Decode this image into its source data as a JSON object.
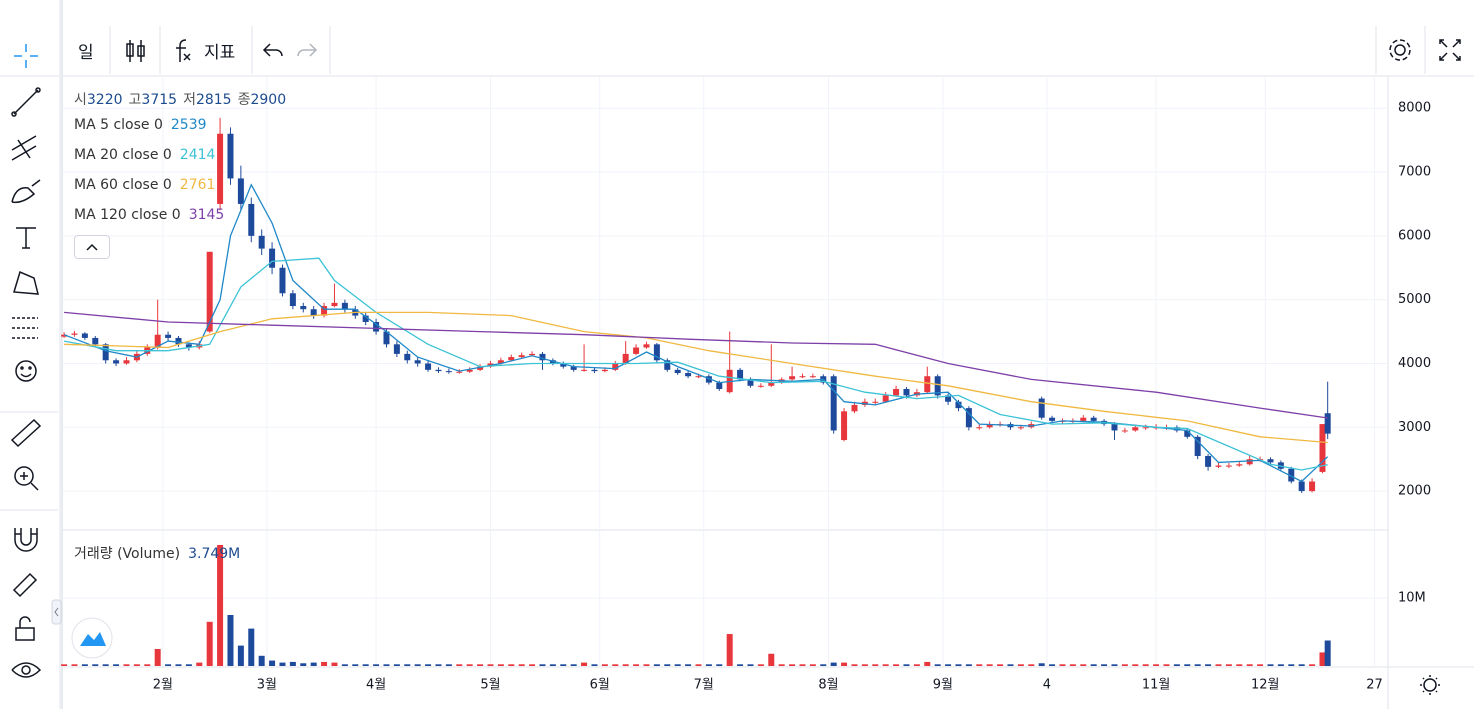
{
  "toolbar": {
    "interval": "일",
    "indicators": "지표"
  },
  "chart_data": [
    {
      "type": "candlestick",
      "ohlc_labels": [
        "시",
        "고",
        "저",
        "종"
      ],
      "up_color": "#e8373c",
      "down_color": "#1e4a9c",
      "xlim": [
        -0.4,
        254.6
      ],
      "xticks": [
        {
          "value": 19,
          "label": "2월"
        },
        {
          "value": 39,
          "label": "3월"
        },
        {
          "value": 60,
          "label": "4월"
        },
        {
          "value": 82,
          "label": "5월"
        },
        {
          "value": 103,
          "label": "6월"
        },
        {
          "value": 123,
          "label": "7월"
        },
        {
          "value": 147,
          "label": "8월"
        },
        {
          "value": 169,
          "label": "9월"
        },
        {
          "value": 189,
          "label": "4"
        },
        {
          "value": 210,
          "label": "11월"
        },
        {
          "value": 231,
          "label": "12월"
        },
        {
          "value": 252,
          "label": "27"
        }
      ],
      "ylim": [
        1390,
        8505
      ],
      "yticks": [
        2000,
        3000,
        4000,
        5000,
        6000,
        7000,
        8000
      ],
      "grid": true,
      "x": [
        0,
        2,
        4,
        6,
        8,
        10,
        12,
        14,
        16,
        18,
        20,
        22,
        24,
        26,
        28,
        30,
        32,
        34,
        36,
        38,
        40,
        42,
        44,
        46,
        48,
        50,
        52,
        54,
        56,
        58,
        60,
        62,
        64,
        66,
        68,
        70,
        72,
        74,
        76,
        78,
        80,
        82,
        84,
        86,
        88,
        90,
        92,
        94,
        96,
        98,
        100,
        102,
        104,
        106,
        108,
        110,
        112,
        114,
        116,
        118,
        120,
        122,
        124,
        126,
        128,
        130,
        132,
        134,
        136,
        138,
        140,
        142,
        144,
        146,
        148,
        150,
        152,
        154,
        156,
        158,
        160,
        162,
        164,
        166,
        168,
        170,
        172,
        174,
        176,
        178,
        180,
        182,
        184,
        186,
        188,
        190,
        192,
        194,
        196,
        198,
        200,
        202,
        204,
        206,
        208,
        210,
        212,
        214,
        216,
        218,
        220,
        222,
        224,
        226,
        228,
        230,
        232,
        234,
        236,
        238,
        240,
        242,
        243
      ],
      "candles": [
        [
          4420,
          4490,
          4400,
          4450
        ],
        [
          4450,
          4510,
          4420,
          4470
        ],
        [
          4470,
          4490,
          4370,
          4400
        ],
        [
          4400,
          4430,
          4260,
          4300
        ],
        [
          4300,
          4320,
          4000,
          4050
        ],
        [
          4050,
          4080,
          3960,
          4000
        ],
        [
          4000,
          4100,
          3980,
          4050
        ],
        [
          4050,
          4200,
          4020,
          4150
        ],
        [
          4150,
          4300,
          4120,
          4250
        ],
        [
          4250,
          5000,
          4220,
          4450
        ],
        [
          4450,
          4500,
          4360,
          4400
        ],
        [
          4400,
          4430,
          4260,
          4300
        ],
        [
          4300,
          4330,
          4200,
          4250
        ],
        [
          4250,
          4350,
          4220,
          4300
        ],
        [
          4500,
          5750,
          4480,
          5750
        ],
        [
          6500,
          7850,
          6400,
          7600
        ],
        [
          7600,
          7700,
          6800,
          6900
        ],
        [
          6900,
          7100,
          6400,
          6500
        ],
        [
          6500,
          6600,
          5900,
          6000
        ],
        [
          6000,
          6100,
          5700,
          5800
        ],
        [
          5800,
          5900,
          5400,
          5500
        ],
        [
          5500,
          5550,
          5050,
          5100
        ],
        [
          5100,
          5150,
          4850,
          4900
        ],
        [
          4900,
          4950,
          4800,
          4850
        ],
        [
          4850,
          4900,
          4700,
          4750
        ],
        [
          4750,
          4950,
          4720,
          4900
        ],
        [
          4900,
          5250,
          4880,
          4950
        ],
        [
          4950,
          5000,
          4800,
          4850
        ],
        [
          4850,
          4900,
          4700,
          4750
        ],
        [
          4750,
          4800,
          4600,
          4650
        ],
        [
          4650,
          4700,
          4450,
          4500
        ],
        [
          4500,
          4550,
          4250,
          4300
        ],
        [
          4300,
          4350,
          4100,
          4150
        ],
        [
          4150,
          4200,
          4000,
          4050
        ],
        [
          4050,
          4100,
          3950,
          4000
        ],
        [
          4000,
          4050,
          3870,
          3900
        ],
        [
          3900,
          3940,
          3850,
          3880
        ],
        [
          3880,
          3920,
          3840,
          3870
        ],
        [
          3870,
          3910,
          3840,
          3870
        ],
        [
          3870,
          3940,
          3850,
          3900
        ],
        [
          3900,
          3990,
          3880,
          3950
        ],
        [
          3950,
          4040,
          3930,
          4000
        ],
        [
          4000,
          4090,
          3980,
          4050
        ],
        [
          4050,
          4140,
          4030,
          4100
        ],
        [
          4100,
          4170,
          4080,
          4130
        ],
        [
          4130,
          4190,
          4110,
          4150
        ],
        [
          4150,
          4180,
          3900,
          4050
        ],
        [
          4050,
          4080,
          3970,
          4000
        ],
        [
          4000,
          4030,
          3920,
          3950
        ],
        [
          3950,
          3980,
          3870,
          3900
        ],
        [
          3900,
          4300,
          3870,
          3900
        ],
        [
          3900,
          3930,
          3850,
          3880
        ],
        [
          3880,
          3940,
          3860,
          3900
        ],
        [
          3900,
          4040,
          3880,
          4000
        ],
        [
          4000,
          4350,
          3980,
          4150
        ],
        [
          4150,
          4300,
          4130,
          4250
        ],
        [
          4250,
          4340,
          4230,
          4300
        ],
        [
          4300,
          4320,
          4000,
          4050
        ],
        [
          4050,
          4080,
          3870,
          3900
        ],
        [
          3900,
          3930,
          3820,
          3850
        ],
        [
          3850,
          3880,
          3770,
          3800
        ],
        [
          3800,
          3840,
          3770,
          3800
        ],
        [
          3800,
          3830,
          3670,
          3700
        ],
        [
          3700,
          3730,
          3570,
          3600
        ],
        [
          3550,
          4500,
          3530,
          3900
        ],
        [
          3900,
          3930,
          3720,
          3750
        ],
        [
          3750,
          3780,
          3620,
          3650
        ],
        [
          3650,
          3690,
          3620,
          3650
        ],
        [
          3650,
          4300,
          3630,
          3700
        ],
        [
          3700,
          3780,
          3680,
          3750
        ],
        [
          3750,
          3950,
          3730,
          3800
        ],
        [
          3800,
          3840,
          3770,
          3800
        ],
        [
          3800,
          3840,
          3770,
          3800
        ],
        [
          3800,
          3830,
          3670,
          3700
        ],
        [
          3800,
          3830,
          2900,
          2950
        ],
        [
          2800,
          3300,
          2780,
          3250
        ],
        [
          3250,
          3400,
          3220,
          3350
        ],
        [
          3350,
          3450,
          3320,
          3400
        ],
        [
          3400,
          3450,
          3360,
          3400
        ],
        [
          3400,
          3550,
          3380,
          3500
        ],
        [
          3500,
          3650,
          3480,
          3600
        ],
        [
          3600,
          3630,
          3450,
          3500
        ],
        [
          3500,
          3600,
          3470,
          3550
        ],
        [
          3550,
          3950,
          3530,
          3800
        ],
        [
          3800,
          3830,
          3450,
          3500
        ],
        [
          3500,
          3530,
          3350,
          3400
        ],
        [
          3400,
          3430,
          3250,
          3300
        ],
        [
          3300,
          3330,
          2950,
          3000
        ],
        [
          3000,
          3040,
          2960,
          3000
        ],
        [
          3000,
          3090,
          2980,
          3050
        ],
        [
          3050,
          3090,
          3010,
          3050
        ],
        [
          3050,
          3080,
          2960,
          3000
        ],
        [
          3000,
          3040,
          2960,
          3000
        ],
        [
          3000,
          3090,
          2980,
          3050
        ],
        [
          3450,
          3480,
          3120,
          3150
        ],
        [
          3150,
          3180,
          3070,
          3100
        ],
        [
          3100,
          3140,
          3060,
          3100
        ],
        [
          3100,
          3140,
          3060,
          3100
        ],
        [
          3100,
          3190,
          3080,
          3150
        ],
        [
          3150,
          3180,
          3070,
          3100
        ],
        [
          3100,
          3130,
          3020,
          3050
        ],
        [
          3050,
          3080,
          2800,
          2950
        ],
        [
          2950,
          2990,
          2910,
          2950
        ],
        [
          2950,
          3040,
          2930,
          3000
        ],
        [
          3000,
          3040,
          2960,
          3000
        ],
        [
          3000,
          3050,
          2960,
          3000
        ],
        [
          3000,
          3040,
          2960,
          3000
        ],
        [
          3000,
          3030,
          2920,
          2950
        ],
        [
          2950,
          2980,
          2820,
          2850
        ],
        [
          2850,
          2880,
          2500,
          2550
        ],
        [
          2550,
          2580,
          2320,
          2380
        ],
        [
          2380,
          2440,
          2360,
          2400
        ],
        [
          2400,
          2440,
          2360,
          2400
        ],
        [
          2400,
          2460,
          2380,
          2420
        ],
        [
          2420,
          2560,
          2400,
          2500
        ],
        [
          2500,
          2540,
          2460,
          2500
        ],
        [
          2500,
          2530,
          2420,
          2450
        ],
        [
          2450,
          2480,
          2320,
          2350
        ],
        [
          2350,
          2380,
          2120,
          2150
        ],
        [
          2150,
          2180,
          1970,
          2000
        ],
        [
          2000,
          2200,
          1980,
          2150
        ],
        [
          2300,
          3050,
          2280,
          3050
        ],
        [
          3220,
          3715,
          2815,
          2900
        ]
      ],
      "series": [
        {
          "name": "MA 5 close 0",
          "color": "#1e88c8",
          "x": [
            0,
            8,
            14,
            20,
            26,
            30,
            32,
            36,
            40,
            44,
            50,
            56,
            62,
            68,
            76,
            84,
            90,
            98,
            106,
            112,
            118,
            126,
            132,
            140,
            146,
            150,
            156,
            164,
            170,
            176,
            186,
            192,
            200,
            210,
            216,
            222,
            230,
            238,
            243
          ],
          "values": [
            4450,
            4200,
            4100,
            4350,
            4300,
            5000,
            6000,
            6800,
            6200,
            5300,
            4850,
            4850,
            4500,
            4100,
            3880,
            4000,
            4120,
            3950,
            3920,
            4180,
            3950,
            3700,
            3750,
            3720,
            3750,
            3400,
            3350,
            3520,
            3550,
            3050,
            3020,
            3100,
            3080,
            3000,
            2950,
            2450,
            2480,
            2150,
            2539
          ]
        },
        {
          "name": "MA 20 close 0",
          "color": "#3cc3d6",
          "x": [
            0,
            10,
            20,
            28,
            34,
            40,
            49,
            52,
            60,
            70,
            80,
            90,
            100,
            110,
            118,
            126,
            136,
            146,
            154,
            164,
            172,
            180,
            190,
            200,
            210,
            216,
            224,
            232,
            238,
            243
          ],
          "values": [
            4350,
            4200,
            4200,
            4300,
            5200,
            5600,
            5650,
            5300,
            4800,
            4300,
            3950,
            4000,
            4000,
            4000,
            4020,
            3800,
            3700,
            3720,
            3550,
            3450,
            3500,
            3200,
            3050,
            3070,
            3000,
            2980,
            2700,
            2420,
            2330,
            2414
          ]
        },
        {
          "name": "MA 60 close 0",
          "color": "#f0b840",
          "x": [
            0,
            20,
            30,
            40,
            56,
            70,
            86,
            100,
            112,
            124,
            140,
            156,
            170,
            186,
            200,
            216,
            230,
            243
          ],
          "values": [
            4300,
            4250,
            4500,
            4700,
            4800,
            4800,
            4750,
            4500,
            4400,
            4200,
            4000,
            3800,
            3650,
            3400,
            3250,
            3100,
            2850,
            2761
          ]
        },
        {
          "name": "MA 120 close 0",
          "color": "#7e3fa8",
          "x": [
            0,
            20,
            40,
            60,
            80,
            100,
            120,
            140,
            156,
            170,
            186,
            210,
            230,
            243
          ],
          "values": [
            4800,
            4650,
            4600,
            4550,
            4500,
            4450,
            4380,
            4320,
            4300,
            4000,
            3750,
            3550,
            3300,
            3145
          ]
        }
      ]
    },
    {
      "type": "bar",
      "name": "거래량 (Volume)",
      "last_value_label": "3.749M",
      "ylim": [
        0,
        20
      ],
      "yticks": [
        {
          "value": 10,
          "label": "10M"
        }
      ],
      "values": [
        0.25,
        0.25,
        0.25,
        0.25,
        0.25,
        0.25,
        0.25,
        0.25,
        0.25,
        2.5,
        0.25,
        0.25,
        0.25,
        0.5,
        6.5,
        17.8,
        7.5,
        3,
        5.5,
        1.5,
        0.8,
        0.5,
        0.6,
        0.4,
        0.5,
        0.6,
        0.5,
        0.25,
        0.25,
        0.25,
        0.25,
        0.25,
        0.25,
        0.25,
        0.25,
        0.25,
        0.25,
        0.25,
        0.25,
        0.25,
        0.25,
        0.25,
        0.25,
        0.25,
        0.25,
        0.25,
        0.25,
        0.25,
        0.25,
        0.25,
        0.5,
        0.25,
        0.25,
        0.25,
        0.25,
        0.25,
        0.25,
        0.25,
        0.25,
        0.25,
        0.25,
        0.25,
        0.25,
        0.25,
        4.7,
        0.25,
        0.25,
        0.25,
        1.8,
        0.25,
        0.25,
        0.25,
        0.25,
        0.25,
        0.5,
        0.5,
        0.25,
        0.25,
        0.25,
        0.25,
        0.25,
        0.25,
        0.25,
        0.6,
        0.25,
        0.25,
        0.25,
        0.25,
        0.25,
        0.25,
        0.25,
        0.25,
        0.25,
        0.25,
        0.4,
        0.25,
        0.25,
        0.25,
        0.25,
        0.25,
        0.25,
        0.25,
        0.25,
        0.25,
        0.25,
        0.25,
        0.25,
        0.25,
        0.25,
        0.25,
        0.25,
        0.25,
        0.25,
        0.25,
        0.25,
        0.25,
        0.25,
        0.25,
        0.25,
        0.25,
        0.25,
        2.0,
        3.749
      ]
    }
  ]
}
